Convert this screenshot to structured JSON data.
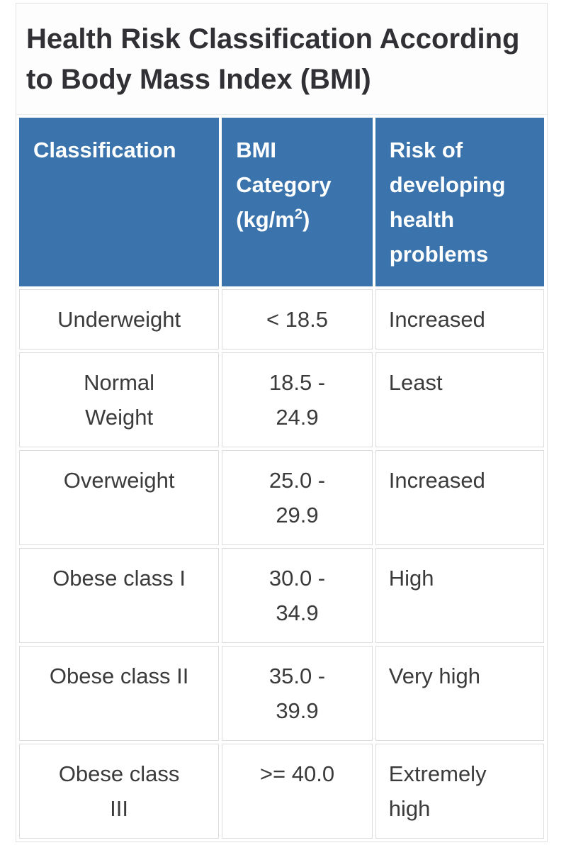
{
  "title": "Health Risk Classification According\nto Body Mass Index (BMI)",
  "table": {
    "columns": [
      {
        "label": "Classification"
      },
      {
        "label_pre": "BMI Category (kg/m",
        "label_sup": "2",
        "label_post": ")"
      },
      {
        "label": "Risk of developing health problems"
      }
    ],
    "rows": [
      {
        "classification": "Underweight",
        "bmi_category": "< 18.5",
        "risk": "Increased"
      },
      {
        "classification": "Normal\nWeight",
        "bmi_category": "18.5 -\n24.9",
        "risk": "Least"
      },
      {
        "classification": "Overweight",
        "bmi_category": "25.0 -\n29.9",
        "risk": "Increased"
      },
      {
        "classification": "Obese class I",
        "bmi_category": "30.0 -\n34.9",
        "risk": "High"
      },
      {
        "classification": "Obese class II",
        "bmi_category": "35.0 -\n39.9",
        "risk": "Very high"
      },
      {
        "classification": "Obese class\nIII",
        "bmi_category": ">= 40.0",
        "risk": "Extremely\nhigh"
      }
    ]
  },
  "chart_data": {
    "type": "table",
    "title": "Health Risk Classification According to Body Mass Index (BMI)",
    "columns": [
      "Classification",
      "BMI Category (kg/m2)",
      "Risk of developing health problems"
    ],
    "rows": [
      [
        "Underweight",
        "< 18.5",
        "Increased"
      ],
      [
        "Normal Weight",
        "18.5 - 24.9",
        "Least"
      ],
      [
        "Overweight",
        "25.0 - 29.9",
        "Increased"
      ],
      [
        "Obese class I",
        "30.0 - 34.9",
        "High"
      ],
      [
        "Obese class II",
        "35.0 - 39.9",
        "Very high"
      ],
      [
        "Obese class III",
        ">= 40.0",
        "Extremely high"
      ]
    ]
  },
  "colors": {
    "header_bg": "#3b74ad",
    "header_text": "#ffffff",
    "body_text": "#3b3b3b",
    "cell_border": "#dcdcdc",
    "panel_border": "#e2e2e2",
    "title_text": "#313135"
  }
}
